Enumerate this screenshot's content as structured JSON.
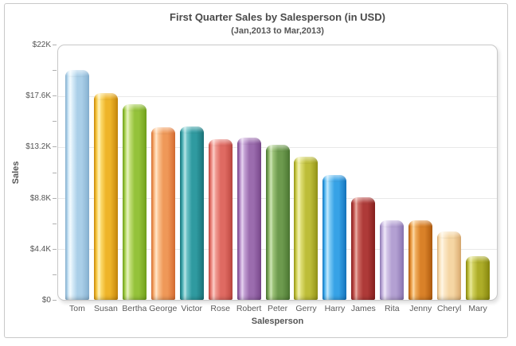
{
  "window": {
    "background": "#ffffff",
    "border_color": "#c9c9c9"
  },
  "chart": {
    "title": "First Quarter Sales by Salesperson (in USD)",
    "subtitle": "(Jan,2013 to Mar,2013)",
    "y_axis_title": "Sales",
    "x_axis_title": "Salesperson",
    "title_color": "#4a4a4a",
    "label_color": "#555555",
    "grid_color": "#e9e9e9",
    "frame_border_color": "#c8c8c8"
  },
  "chart_data": {
    "type": "bar",
    "title": "First Quarter Sales by Salesperson (in USD)",
    "subtitle": "(Jan,2013 to Mar,2013)",
    "xlabel": "Salesperson",
    "ylabel": "Sales",
    "ylim": [
      0,
      22000
    ],
    "y_major_tick_step": 4400,
    "y_minor_tick_step": 2200,
    "y_tick_labels": [
      "$0",
      "$4.4K",
      "$8.8K",
      "$13.2K",
      "$17.6K",
      "$22K"
    ],
    "grid": "horizontal major gridlines only",
    "legend": "none",
    "categories": [
      "Tom",
      "Susan",
      "Bertha",
      "George",
      "Victor",
      "Rose",
      "Robert",
      "Peter",
      "Gerry",
      "Harry",
      "James",
      "Rita",
      "Jenny",
      "Cheryl",
      "Mary"
    ],
    "values": [
      19900,
      17900,
      16900,
      14900,
      15000,
      13900,
      14000,
      13400,
      12400,
      10800,
      8900,
      6900,
      6900,
      5900,
      3800
    ],
    "bar_styles": [
      {
        "name": "pale-blue",
        "shade": "#8ab4d4",
        "base": "#aacfe8",
        "light": "#d8ecf8",
        "glare": "#f2fafe"
      },
      {
        "name": "gold",
        "shade": "#c98a0e",
        "base": "#eeb429",
        "light": "#fbd96a",
        "glare": "#fff3c0"
      },
      {
        "name": "yellow-green",
        "shade": "#74a41e",
        "base": "#94c23a",
        "light": "#c4e07c",
        "glare": "#e8f4c4"
      },
      {
        "name": "orange",
        "shade": "#d86f34",
        "base": "#ef9858",
        "light": "#fbc392",
        "glare": "#ffe6cc"
      },
      {
        "name": "teal",
        "shade": "#1d767c",
        "base": "#2f9aa0",
        "light": "#6cc2c6",
        "glare": "#b8e4e6"
      },
      {
        "name": "coral",
        "shade": "#bf4a42",
        "base": "#df6a62",
        "light": "#f09a92",
        "glare": "#fbcfc9"
      },
      {
        "name": "purple",
        "shade": "#7b4b8e",
        "base": "#9b6cae",
        "light": "#c3a0d4",
        "glare": "#e6d4f0"
      },
      {
        "name": "green",
        "shade": "#4e7a34",
        "base": "#6d9a4e",
        "light": "#9cc278",
        "glare": "#cfe6b8"
      },
      {
        "name": "olive-yellow",
        "shade": "#97971a",
        "base": "#bdbd38",
        "light": "#dede74",
        "glare": "#f2f2b4"
      },
      {
        "name": "sky-blue",
        "shade": "#1878c0",
        "base": "#36a2e6",
        "light": "#7ecbf6",
        "glare": "#c4e9fc"
      },
      {
        "name": "dark-red",
        "shade": "#8a2220",
        "base": "#ae3a38",
        "light": "#cc6a62",
        "glare": "#eab0a8"
      },
      {
        "name": "lavender",
        "shade": "#8d78b4",
        "base": "#b3a0d2",
        "light": "#d4c6e8",
        "glare": "#eee8f8"
      },
      {
        "name": "dark-orange",
        "shade": "#b25d10",
        "base": "#d98128",
        "light": "#f0ad5c",
        "glare": "#fbd9a8"
      },
      {
        "name": "peach",
        "shade": "#dcae74",
        "base": "#f5d6a4",
        "light": "#fbe8c8",
        "glare": "#fef6e6"
      },
      {
        "name": "olive",
        "shade": "#8a8a10",
        "base": "#adad28",
        "light": "#d0d05c",
        "glare": "#e8e89c"
      }
    ]
  }
}
